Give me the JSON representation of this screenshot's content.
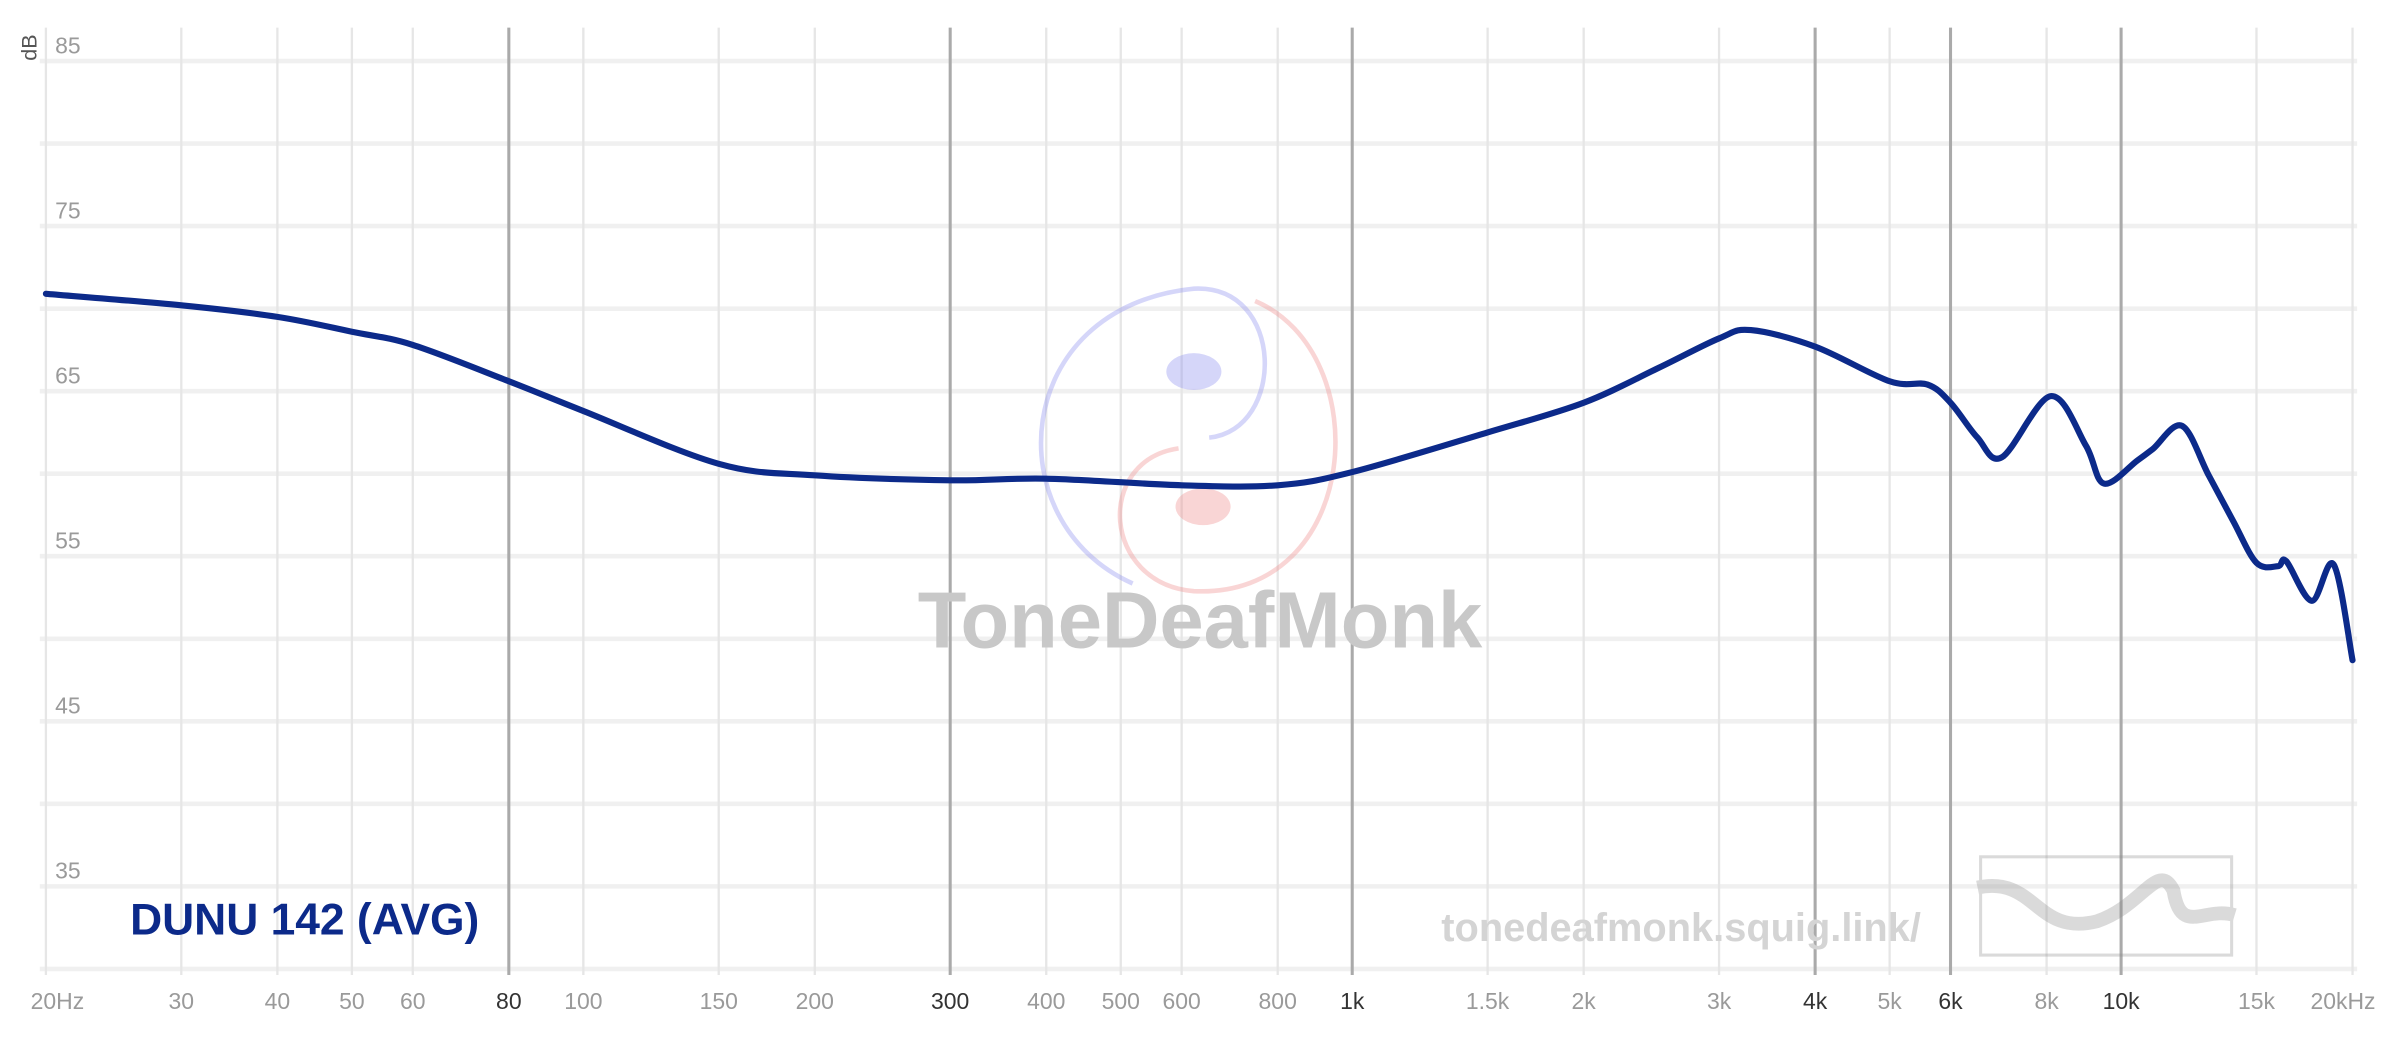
{
  "chart_data": {
    "type": "line",
    "ylabel": "dB",
    "xscale": "log",
    "xlim": [
      20,
      20000
    ],
    "ylim": [
      30,
      86
    ],
    "yticks": [
      35,
      45,
      55,
      65,
      75,
      85
    ],
    "ygrid": [
      30,
      35,
      40,
      45,
      50,
      55,
      60,
      65,
      70,
      75,
      80,
      85
    ],
    "xticks": [
      {
        "value": 20,
        "label": "20Hz"
      },
      30,
      40,
      50,
      60,
      80,
      100,
      150,
      200,
      300,
      400,
      500,
      600,
      800,
      {
        "value": 1000,
        "label": "1k"
      },
      {
        "value": 1500,
        "label": "1.5k"
      },
      {
        "value": 2000,
        "label": "2k"
      },
      {
        "value": 3000,
        "label": "3k"
      },
      {
        "value": 4000,
        "label": "4k"
      },
      {
        "value": 5000,
        "label": "5k"
      },
      {
        "value": 6000,
        "label": "6k"
      },
      {
        "value": 8000,
        "label": "8k"
      },
      {
        "value": 10000,
        "label": "10k"
      },
      {
        "value": 15000,
        "label": "15k"
      },
      {
        "value": 20000,
        "label": "20kHz"
      }
    ],
    "xticks_major": [
      80,
      300,
      1000,
      4000,
      6000,
      10000
    ],
    "grid": true,
    "watermark": "ToneDeafMonk",
    "site": "tonedeafmonk.squig.link/",
    "series": [
      {
        "name": "DUNU 142 (AVG)",
        "color": "#0c2a8a",
        "x": [
          20,
          30,
          40,
          50,
          60,
          80,
          100,
          150,
          200,
          300,
          400,
          600,
          800,
          1000,
          1500,
          2000,
          2500,
          3000,
          3300,
          4000,
          5000,
          5600,
          6000,
          6500,
          7000,
          8100,
          9000,
          9500,
          10500,
          11000,
          12000,
          13000,
          14000,
          15000,
          16000,
          16400,
          17700,
          18900,
          20000
        ],
        "values": [
          70.9,
          70.2,
          69.5,
          68.6,
          67.8,
          65.6,
          63.8,
          60.6,
          59.9,
          59.6,
          59.7,
          59.3,
          59.3,
          60.1,
          62.5,
          64.3,
          66.4,
          68.2,
          68.7,
          67.7,
          65.6,
          65.4,
          64.3,
          62.2,
          61.0,
          64.7,
          61.7,
          59.4,
          60.8,
          61.5,
          62.9,
          59.9,
          57.1,
          54.6,
          54.4,
          54.7,
          52.3,
          54.5,
          48.7
        ]
      }
    ]
  }
}
